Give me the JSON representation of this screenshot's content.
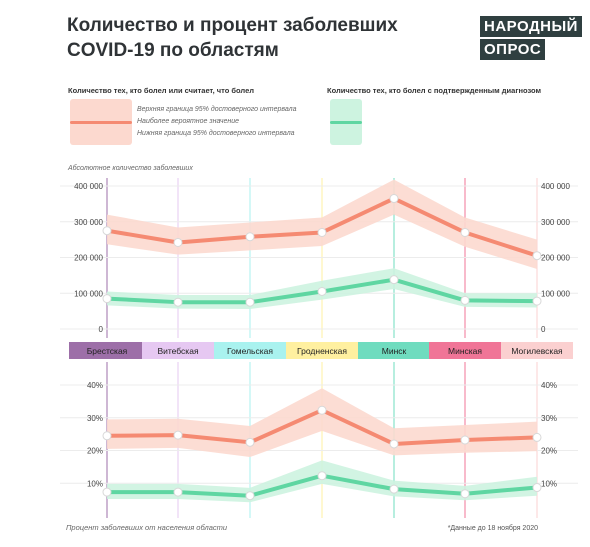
{
  "title_line1": "Количество и процент заболевших",
  "title_line2": "COVID-19 по областям",
  "logo": {
    "line1": "НАРОДНЫЙ",
    "line2": "ОПРОС"
  },
  "legend": {
    "probable_title": "Количество тех, кто болел или считает, что болел",
    "upper": "Верхняя граница 95% достоверного интервала",
    "likely": "Наиболее вероятное значение",
    "lower": "Нижняя граница 95% достоверного интервала",
    "confirmed_title": "Количество тех, кто болел с подтвержденным диагнозом"
  },
  "colors": {
    "probable_line": "#f58a72",
    "probable_band": "#fcd9cf",
    "confirmed_line": "#5fd6a2",
    "confirmed_band": "#cdf3e0"
  },
  "footer": {
    "bottom_axis_label": "Процент заболевших от населения области",
    "note": "*Данные до 18 ноября 2020"
  },
  "chart_data": [
    {
      "type": "line",
      "title": "Абсолютное количество заболевших",
      "categories": [
        "Брестская",
        "Витебская",
        "Гомельская",
        "Гродненская",
        "Минск",
        "Минская",
        "Могилевская"
      ],
      "category_colors": [
        "#9d6fa8",
        "#e6c8f2",
        "#a9f2ef",
        "#fff0a0",
        "#6fdcbf",
        "#f07597",
        "#fbd0d0"
      ],
      "ylim": [
        0,
        400000
      ],
      "yticks": [
        "0",
        "100 000",
        "200 000",
        "300 000",
        "400 000"
      ],
      "series": [
        {
          "values": [
            275000,
            242000,
            258000,
            270000,
            365000,
            270000,
            205000
          ],
          "lower": [
            237000,
            208000,
            220000,
            232000,
            320000,
            230000,
            168000
          ],
          "upper": [
            320000,
            284000,
            298000,
            312000,
            418000,
            312000,
            250000
          ]
        },
        {
          "values": [
            85000,
            75000,
            75000,
            105000,
            138000,
            80000,
            78000
          ],
          "lower": [
            66000,
            57000,
            56000,
            82000,
            112000,
            62000,
            60000
          ],
          "upper": [
            105000,
            95000,
            95000,
            135000,
            170000,
            100000,
            100000
          ]
        }
      ]
    },
    {
      "type": "line",
      "categories": [
        "Брестская",
        "Витебская",
        "Гомельская",
        "Гродненская",
        "Минск",
        "Минская",
        "Могилевская"
      ],
      "ylim": [
        0,
        40
      ],
      "yticks": [
        "10%",
        "20%",
        "30%",
        "40%"
      ],
      "series": [
        {
          "values": [
            24.5,
            24.7,
            22.5,
            32.3,
            22.0,
            23.2,
            24.0
          ],
          "lower": [
            20.5,
            20.8,
            18.0,
            26.0,
            18.5,
            19.3,
            19.8
          ],
          "upper": [
            29.5,
            29.7,
            27.5,
            39.0,
            26.8,
            27.8,
            28.8
          ]
        },
        {
          "values": [
            7.3,
            7.3,
            6.2,
            12.3,
            8.2,
            6.8,
            8.7
          ],
          "lower": [
            5.2,
            5.2,
            4.2,
            9.8,
            6.0,
            4.8,
            6.2
          ],
          "upper": [
            9.8,
            9.8,
            8.6,
            17.0,
            10.8,
            9.2,
            12.0
          ]
        }
      ]
    }
  ]
}
